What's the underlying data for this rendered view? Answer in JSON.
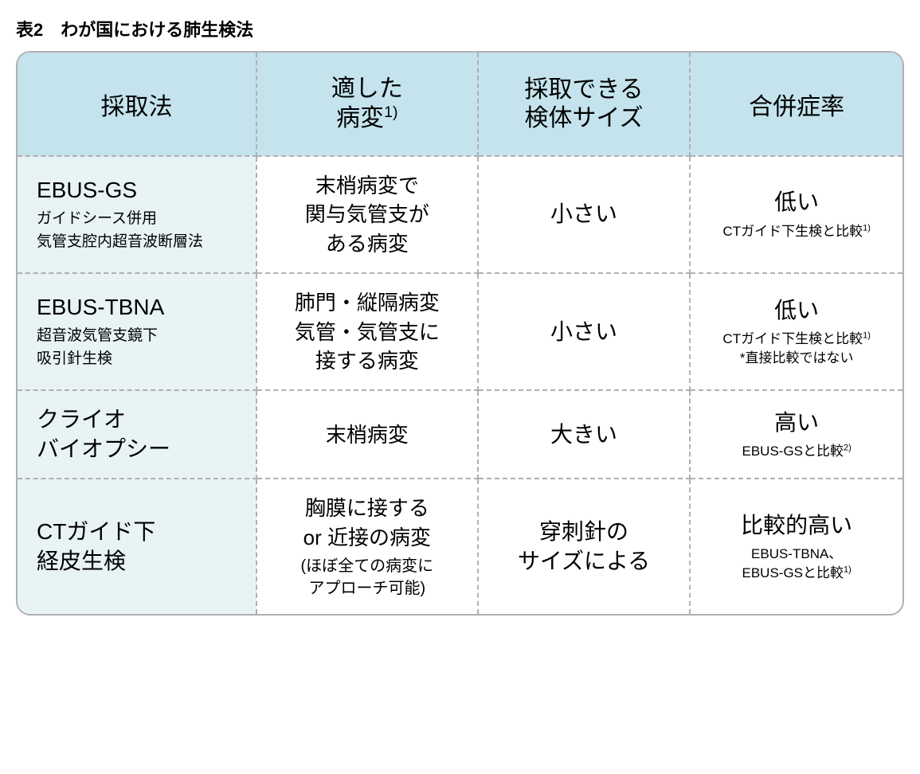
{
  "title": "表2　わが国における肺生検法",
  "colors": {
    "header_bg": "#c4e3ed",
    "method_bg": "#e8f3f5",
    "border": "#b0b0b0",
    "text": "#000000",
    "background": "#ffffff"
  },
  "table": {
    "headers": {
      "method": "採取法",
      "lesion_line1": "適した",
      "lesion_line2": "病変",
      "lesion_sup": "1)",
      "size_line1": "採取できる",
      "size_line2": "検体サイズ",
      "rate": "合併症率"
    },
    "rows": [
      {
        "method_title": "EBUS-GS",
        "method_sub1": "ガイドシース併用",
        "method_sub2": "気管支腔内超音波断層法",
        "lesion_line1": "末梢病変で",
        "lesion_line2": "関与気管支が",
        "lesion_line3": "ある病変",
        "lesion_sub": "",
        "size": "小さい",
        "rate_main": "低い",
        "rate_sub1": "CTガイド下生検と比較",
        "rate_sub1_sup": "1)",
        "rate_sub2": ""
      },
      {
        "method_title": "EBUS-TBNA",
        "method_sub1": "超音波気管支鏡下",
        "method_sub2": "吸引針生検",
        "lesion_line1": "肺門・縦隔病変",
        "lesion_line2": "気管・気管支に",
        "lesion_line3": "接する病変",
        "lesion_sub": "",
        "size": "小さい",
        "rate_main": "低い",
        "rate_sub1": "CTガイド下生検と比較",
        "rate_sub1_sup": "1)",
        "rate_sub2": "*直接比較ではない"
      },
      {
        "method_title_line1": "クライオ",
        "method_title_line2": "バイオプシー",
        "method_sub1": "",
        "method_sub2": "",
        "lesion_line1": "末梢病変",
        "lesion_line2": "",
        "lesion_line3": "",
        "lesion_sub": "",
        "size": "大きい",
        "rate_main": "高い",
        "rate_sub1": "EBUS-GSと比較",
        "rate_sub1_sup": "2)",
        "rate_sub2": ""
      },
      {
        "method_title_line1": "CTガイド下",
        "method_title_line2": "経皮生検",
        "method_sub1": "",
        "method_sub2": "",
        "lesion_line1": "胸膜に接する",
        "lesion_line2": "or 近接の病変",
        "lesion_line3": "",
        "lesion_sub_line1": "(ほぼ全ての病変に",
        "lesion_sub_line2": "アプローチ可能)",
        "size_line1": "穿刺針の",
        "size_line2": "サイズによる",
        "rate_main": "比較的高い",
        "rate_sub1": "EBUS-TBNA、",
        "rate_sub1_sup": "",
        "rate_sub2": "EBUS-GSと比較",
        "rate_sub2_sup": "1)"
      }
    ]
  }
}
